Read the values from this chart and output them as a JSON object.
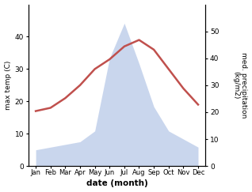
{
  "months": [
    "Jan",
    "Feb",
    "Mar",
    "Apr",
    "May",
    "Jun",
    "Jul",
    "Aug",
    "Sep",
    "Oct",
    "Nov",
    "Dec"
  ],
  "temperature": [
    17,
    18,
    21,
    25,
    30,
    33,
    37,
    39,
    36,
    30,
    24,
    19
  ],
  "precipitation": [
    6,
    7,
    8,
    9,
    13,
    40,
    53,
    38,
    22,
    13,
    10,
    7
  ],
  "temp_ylim": [
    0,
    50
  ],
  "precip_ylim": [
    0,
    60
  ],
  "precip_yticks": [
    0,
    10,
    20,
    30,
    40,
    50
  ],
  "temp_yticks": [
    0,
    10,
    20,
    30,
    40
  ],
  "line_color": "#c0504d",
  "fill_color": "#b8c9e8",
  "fill_alpha": 0.75,
  "ylabel_left": "max temp (C)",
  "ylabel_right": "med. precipitation\n(kg/m2)",
  "xlabel": "date (month)",
  "bg_color": "#ffffff",
  "line_width": 1.8,
  "figwidth": 3.18,
  "figheight": 2.43,
  "dpi": 100
}
